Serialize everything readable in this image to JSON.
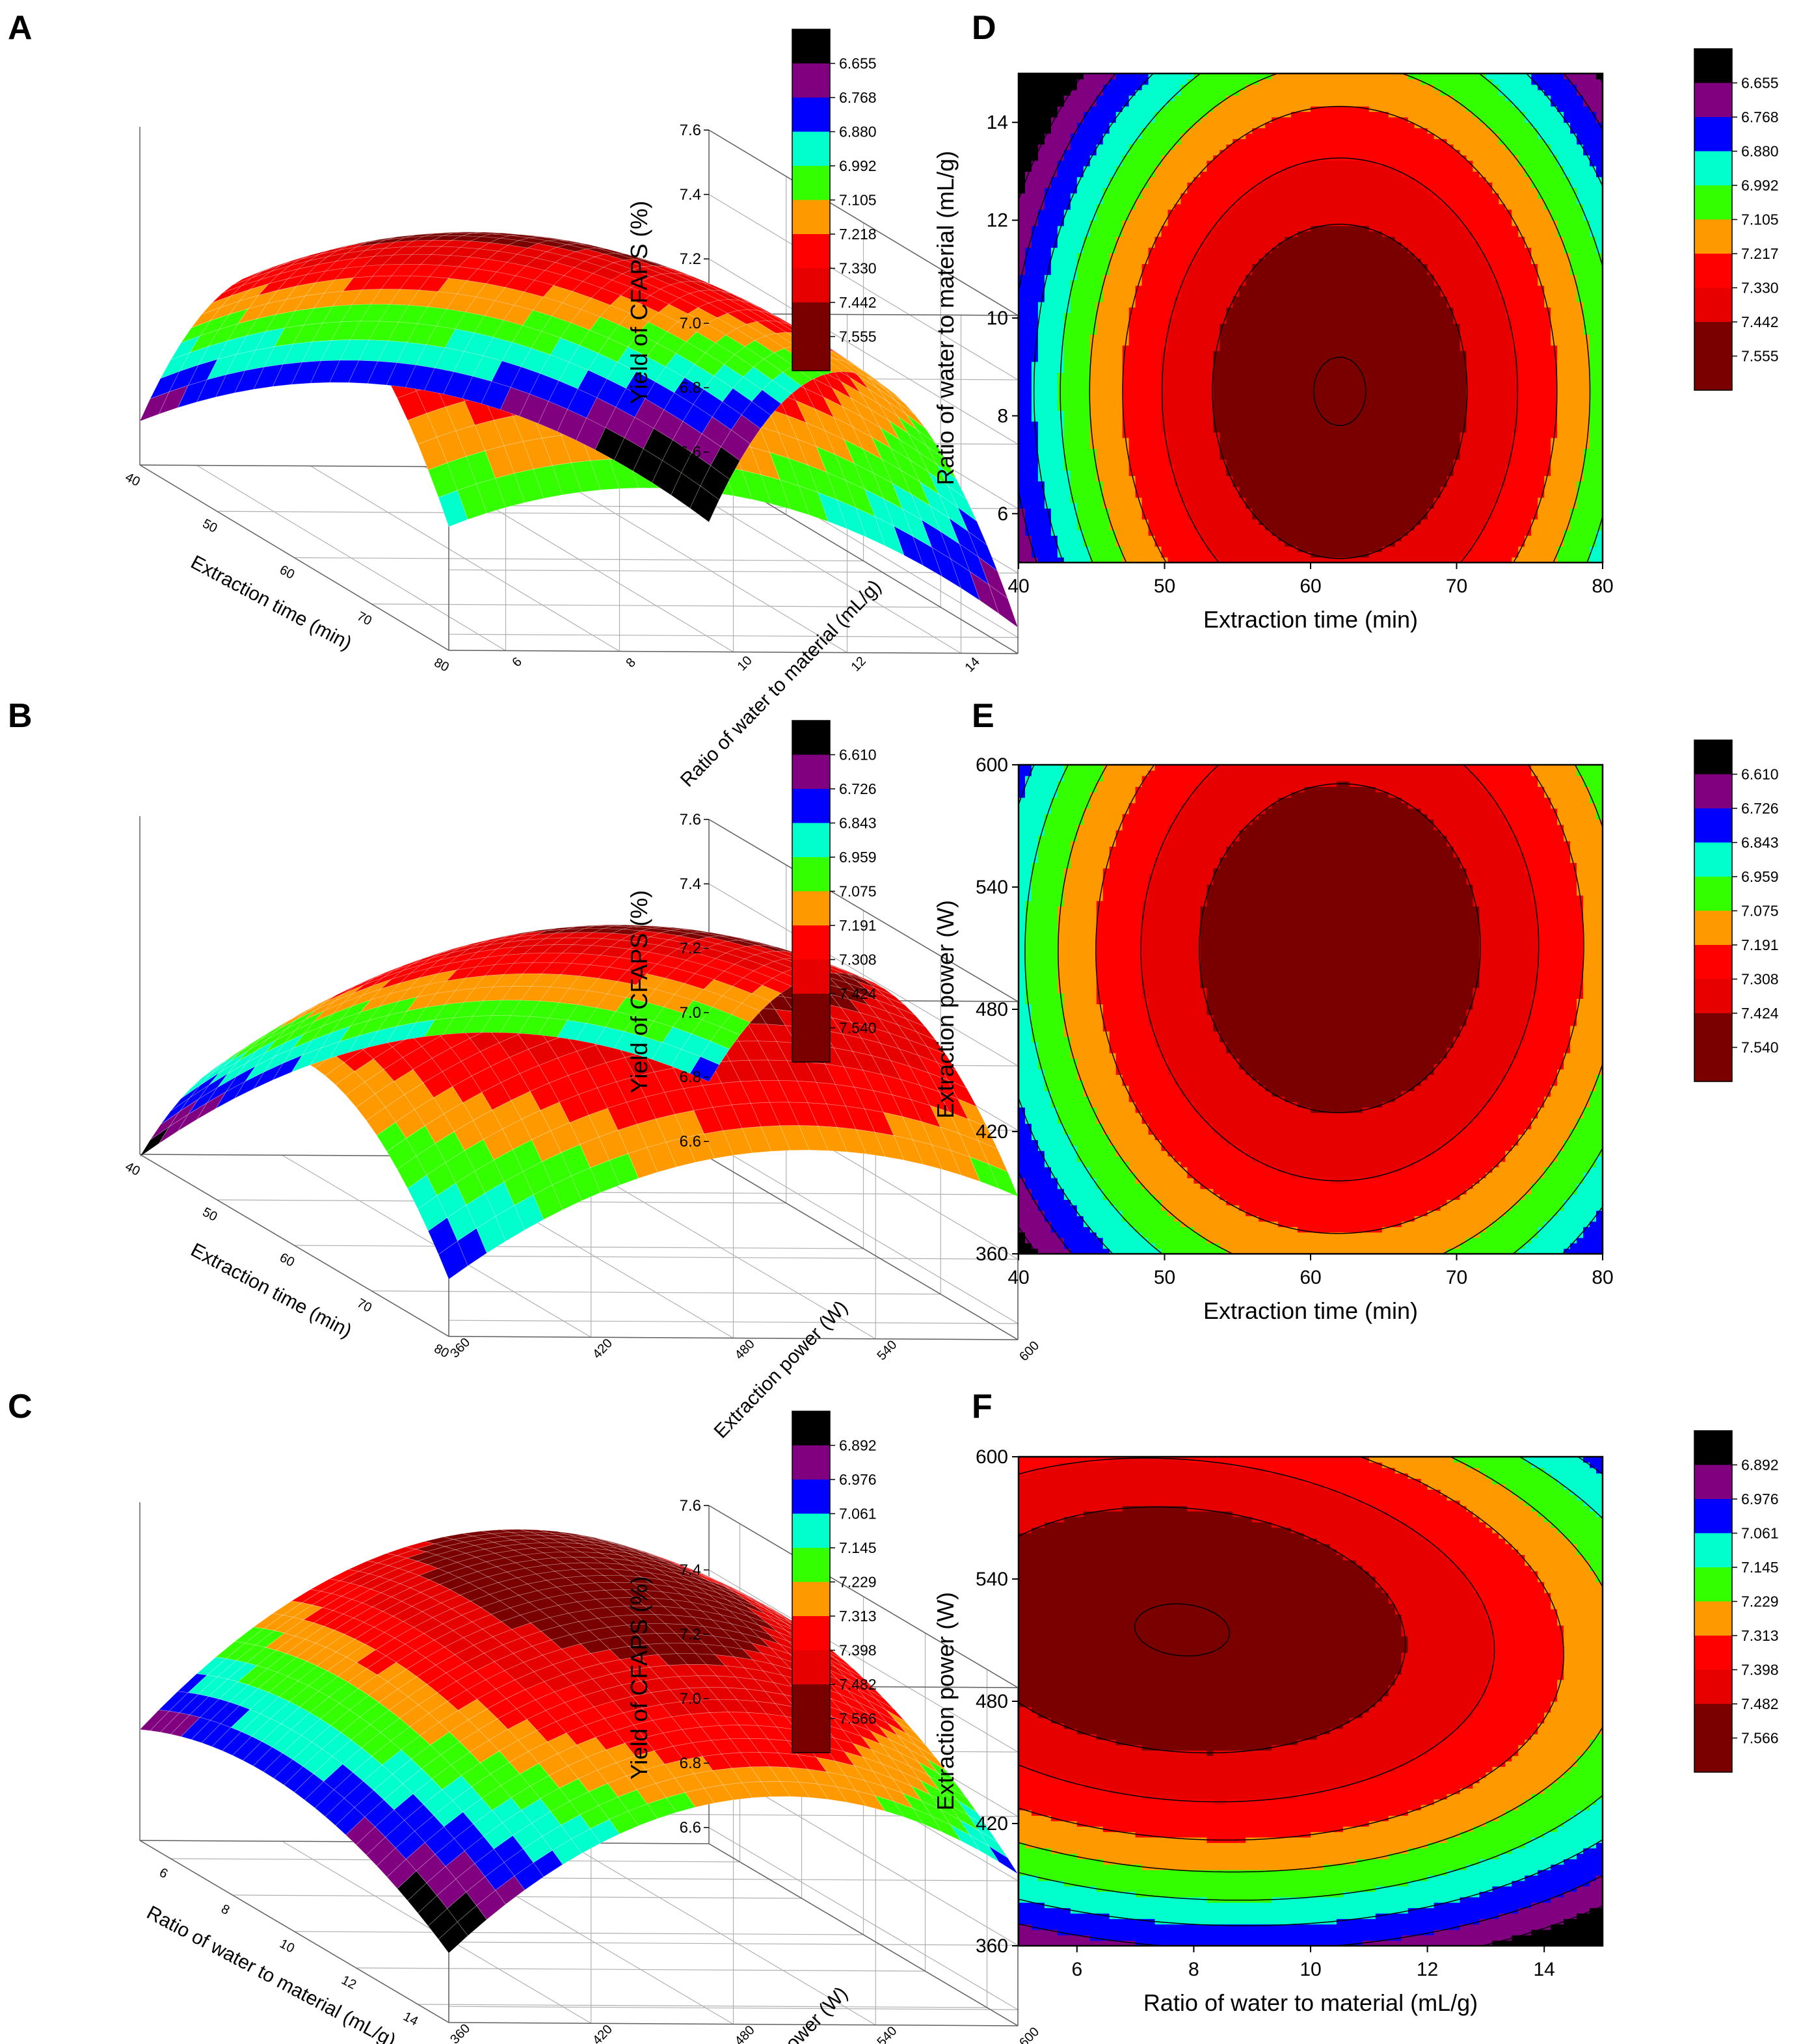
{
  "figure": {
    "panels": [
      "A",
      "B",
      "C",
      "D",
      "E",
      "F"
    ]
  },
  "palette": [
    "#000000",
    "#800080",
    "#0000ff",
    "#00ffcc",
    "#33ff00",
    "#ff9900",
    "#ff0000",
    "#e60000",
    "#7a0000"
  ],
  "chart_data": [
    {
      "id": "A",
      "type": "surface3d",
      "xlabel": "Extraction time (min)",
      "ylabel": "Ratio of water to material (mL/g)",
      "zlabel": "Yield of CFAPS (%)",
      "x_ticks": [
        "40",
        "50",
        "60",
        "70",
        "80"
      ],
      "y_ticks": [
        "6",
        "8",
        "10",
        "12",
        "14"
      ],
      "z_ticks": [
        "6.6",
        "6.8",
        "7.0",
        "7.2",
        "7.4",
        "7.6"
      ],
      "xlim": [
        40,
        80
      ],
      "ylim": [
        5,
        15
      ],
      "zlim": [
        6.55,
        7.6
      ],
      "model": {
        "x0": 62,
        "y0": 8.5,
        "zmax": 7.56,
        "ax": 0.00155,
        "by": 0.0101,
        "cxy": 0
      },
      "legend_levels": [
        "6.655",
        "6.768",
        "6.880",
        "6.992",
        "7.105",
        "7.218",
        "7.330",
        "7.442",
        "7.555"
      ]
    },
    {
      "id": "B",
      "type": "surface3d",
      "xlabel": "Extraction time (min)",
      "ylabel": "Extraction power (W)",
      "zlabel": "Yield of CFAPS (%)",
      "x_ticks": [
        "40",
        "50",
        "60",
        "70",
        "80"
      ],
      "y_ticks": [
        "360",
        "420",
        "480",
        "540",
        "600"
      ],
      "z_ticks": [
        "6.6",
        "6.8",
        "7.0",
        "7.2",
        "7.4",
        "7.6"
      ],
      "xlim": [
        40,
        80
      ],
      "ylim": [
        360,
        600
      ],
      "zlim": [
        6.55,
        7.6
      ],
      "model": {
        "x0": 62,
        "y0": 510,
        "zmax": 7.54,
        "ax": 0.00125,
        "by": 1.78e-05,
        "cxy": -2.5e-06
      },
      "legend_levels": [
        "6.610",
        "6.726",
        "6.843",
        "6.959",
        "7.075",
        "7.191",
        "7.308",
        "7.424",
        "7.540"
      ]
    },
    {
      "id": "C",
      "type": "surface3d",
      "xlabel": "Ratio of water to material (mL/g)",
      "ylabel": "Extraction power (W)",
      "zlabel": "Yield of CFAPS (%)",
      "x_ticks": [
        "6",
        "8",
        "10",
        "12",
        "14"
      ],
      "y_ticks": [
        "360",
        "420",
        "480",
        "540",
        "600"
      ],
      "z_ticks": [
        "6.6",
        "6.8",
        "7.0",
        "7.2",
        "7.4",
        "7.6"
      ],
      "xlim": [
        5,
        15
      ],
      "ylim": [
        360,
        600
      ],
      "zlim": [
        6.55,
        7.6
      ],
      "model": {
        "x0": 7.8,
        "y0": 515,
        "zmax": 7.57,
        "ax": 0.0061,
        "by": 2.45e-05,
        "cxy": 9e-05
      },
      "legend_levels": [
        "6.892",
        "6.976",
        "7.061",
        "7.145",
        "7.229",
        "7.313",
        "7.398",
        "7.482",
        "7.566"
      ]
    },
    {
      "id": "D",
      "type": "contour",
      "xlabel": "Extraction time (min)",
      "ylabel": "Ratio of water to material (mL/g)",
      "x_ticks": [
        40,
        50,
        60,
        70,
        80
      ],
      "y_ticks": [
        6,
        8,
        10,
        12,
        14
      ],
      "xlim": [
        40,
        80
      ],
      "ylim": [
        5,
        15
      ],
      "model": {
        "x0": 62,
        "y0": 8.5,
        "zmax": 7.56,
        "ax": 0.00155,
        "by": 0.0101,
        "cxy": 0
      },
      "legend_levels": [
        "6.655",
        "6.768",
        "6.880",
        "6.992",
        "7.105",
        "7.217",
        "7.330",
        "7.442",
        "7.555"
      ]
    },
    {
      "id": "E",
      "type": "contour",
      "xlabel": "Extraction time (min)",
      "ylabel": "Extraction power (W)",
      "x_ticks": [
        40,
        50,
        60,
        70,
        80
      ],
      "y_ticks": [
        360,
        420,
        480,
        540,
        600
      ],
      "xlim": [
        40,
        80
      ],
      "ylim": [
        360,
        600
      ],
      "model": {
        "x0": 62,
        "y0": 510,
        "zmax": 7.54,
        "ax": 0.00125,
        "by": 1.78e-05,
        "cxy": -2.5e-06
      },
      "legend_levels": [
        "6.610",
        "6.726",
        "6.843",
        "6.959",
        "7.075",
        "7.191",
        "7.308",
        "7.424",
        "7.540"
      ]
    },
    {
      "id": "F",
      "type": "contour",
      "xlabel": "Ratio of water to material (mL/g)",
      "ylabel": "Extraction power (W)",
      "x_ticks": [
        6,
        8,
        10,
        12,
        14
      ],
      "y_ticks": [
        360,
        420,
        480,
        540,
        600
      ],
      "xlim": [
        5,
        15
      ],
      "ylim": [
        360,
        600
      ],
      "model": {
        "x0": 7.8,
        "y0": 515,
        "zmax": 7.57,
        "ax": 0.0061,
        "by": 2.45e-05,
        "cxy": 9e-05
      },
      "legend_levels": [
        "6.892",
        "6.976",
        "7.061",
        "7.145",
        "7.229",
        "7.313",
        "7.398",
        "7.482",
        "7.566"
      ]
    }
  ]
}
